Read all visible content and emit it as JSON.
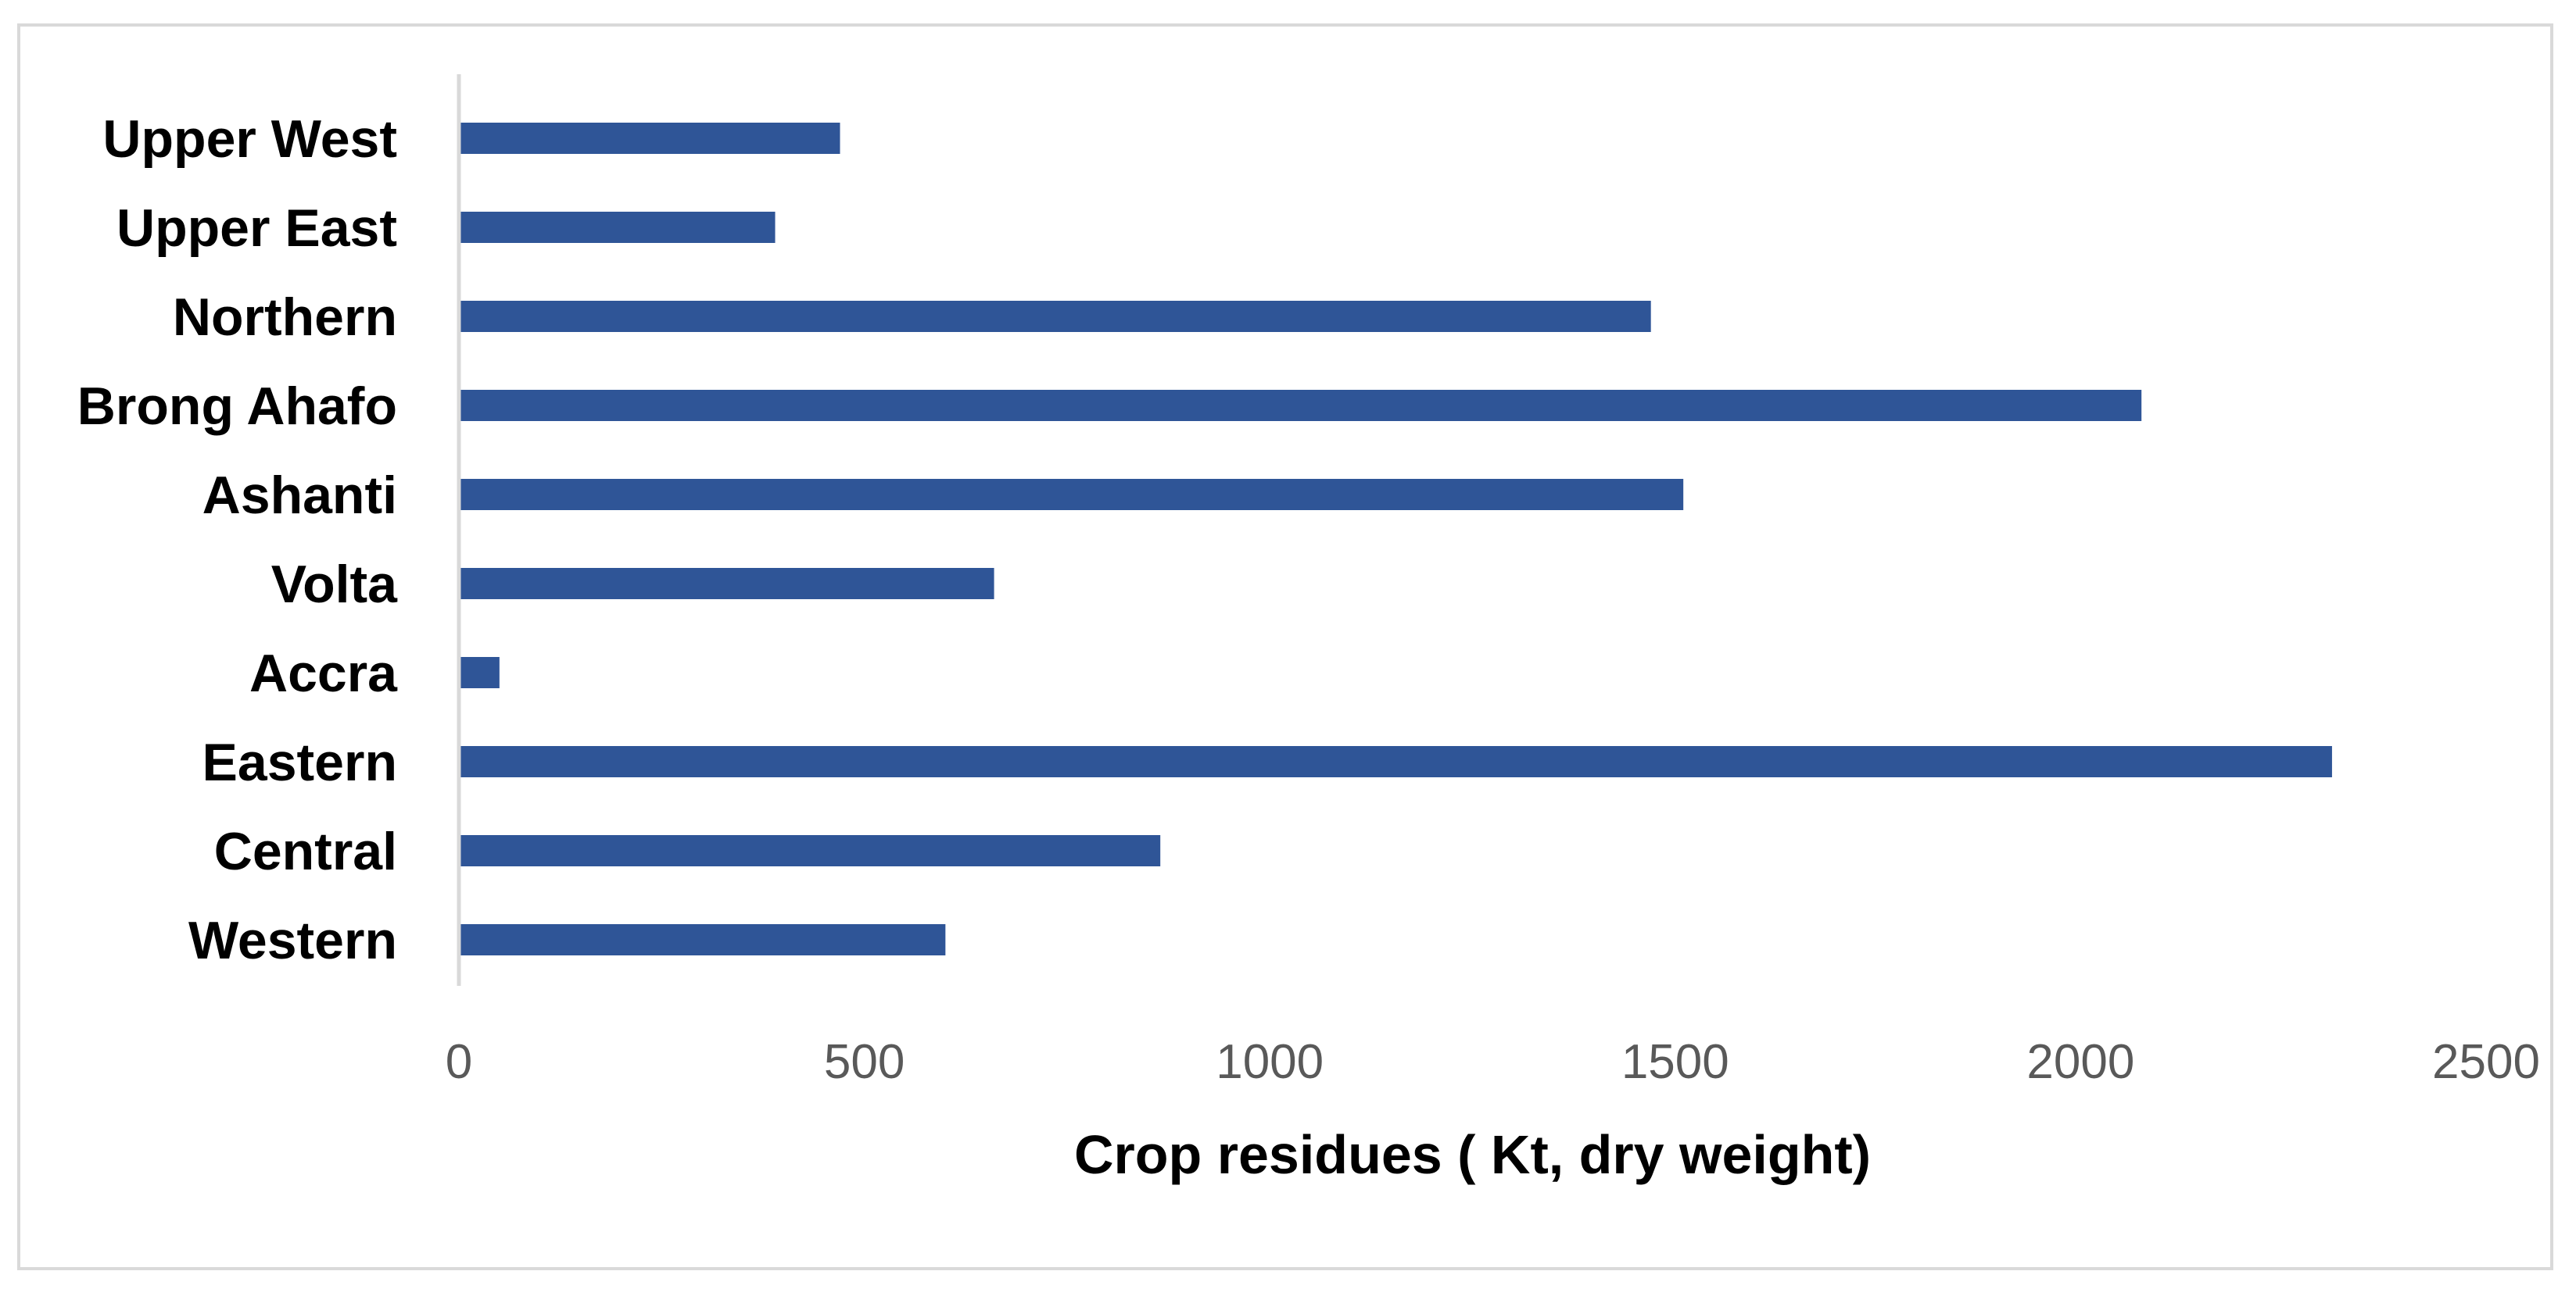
{
  "chart_data": {
    "type": "bar",
    "orientation": "horizontal",
    "title": "",
    "xlabel": "Crop residues ( Kt, dry weight)",
    "ylabel": "",
    "categories": [
      "Western",
      "Central",
      "Eastern",
      "Accra",
      "Volta",
      "Ashanti",
      "Brong Ahafo",
      "Northern",
      "Upper East",
      "Upper West"
    ],
    "values": [
      600,
      865,
      2310,
      50,
      660,
      1510,
      2075,
      1470,
      390,
      470
    ],
    "xlim": [
      0,
      2500
    ],
    "x_ticks": [
      0,
      500,
      1000,
      1500,
      2000,
      2500
    ],
    "grid": false,
    "legend": "none",
    "colors": {
      "bar": "#2f5597",
      "axis": "#d9d9d9",
      "frame": "#d9d9d9"
    }
  }
}
